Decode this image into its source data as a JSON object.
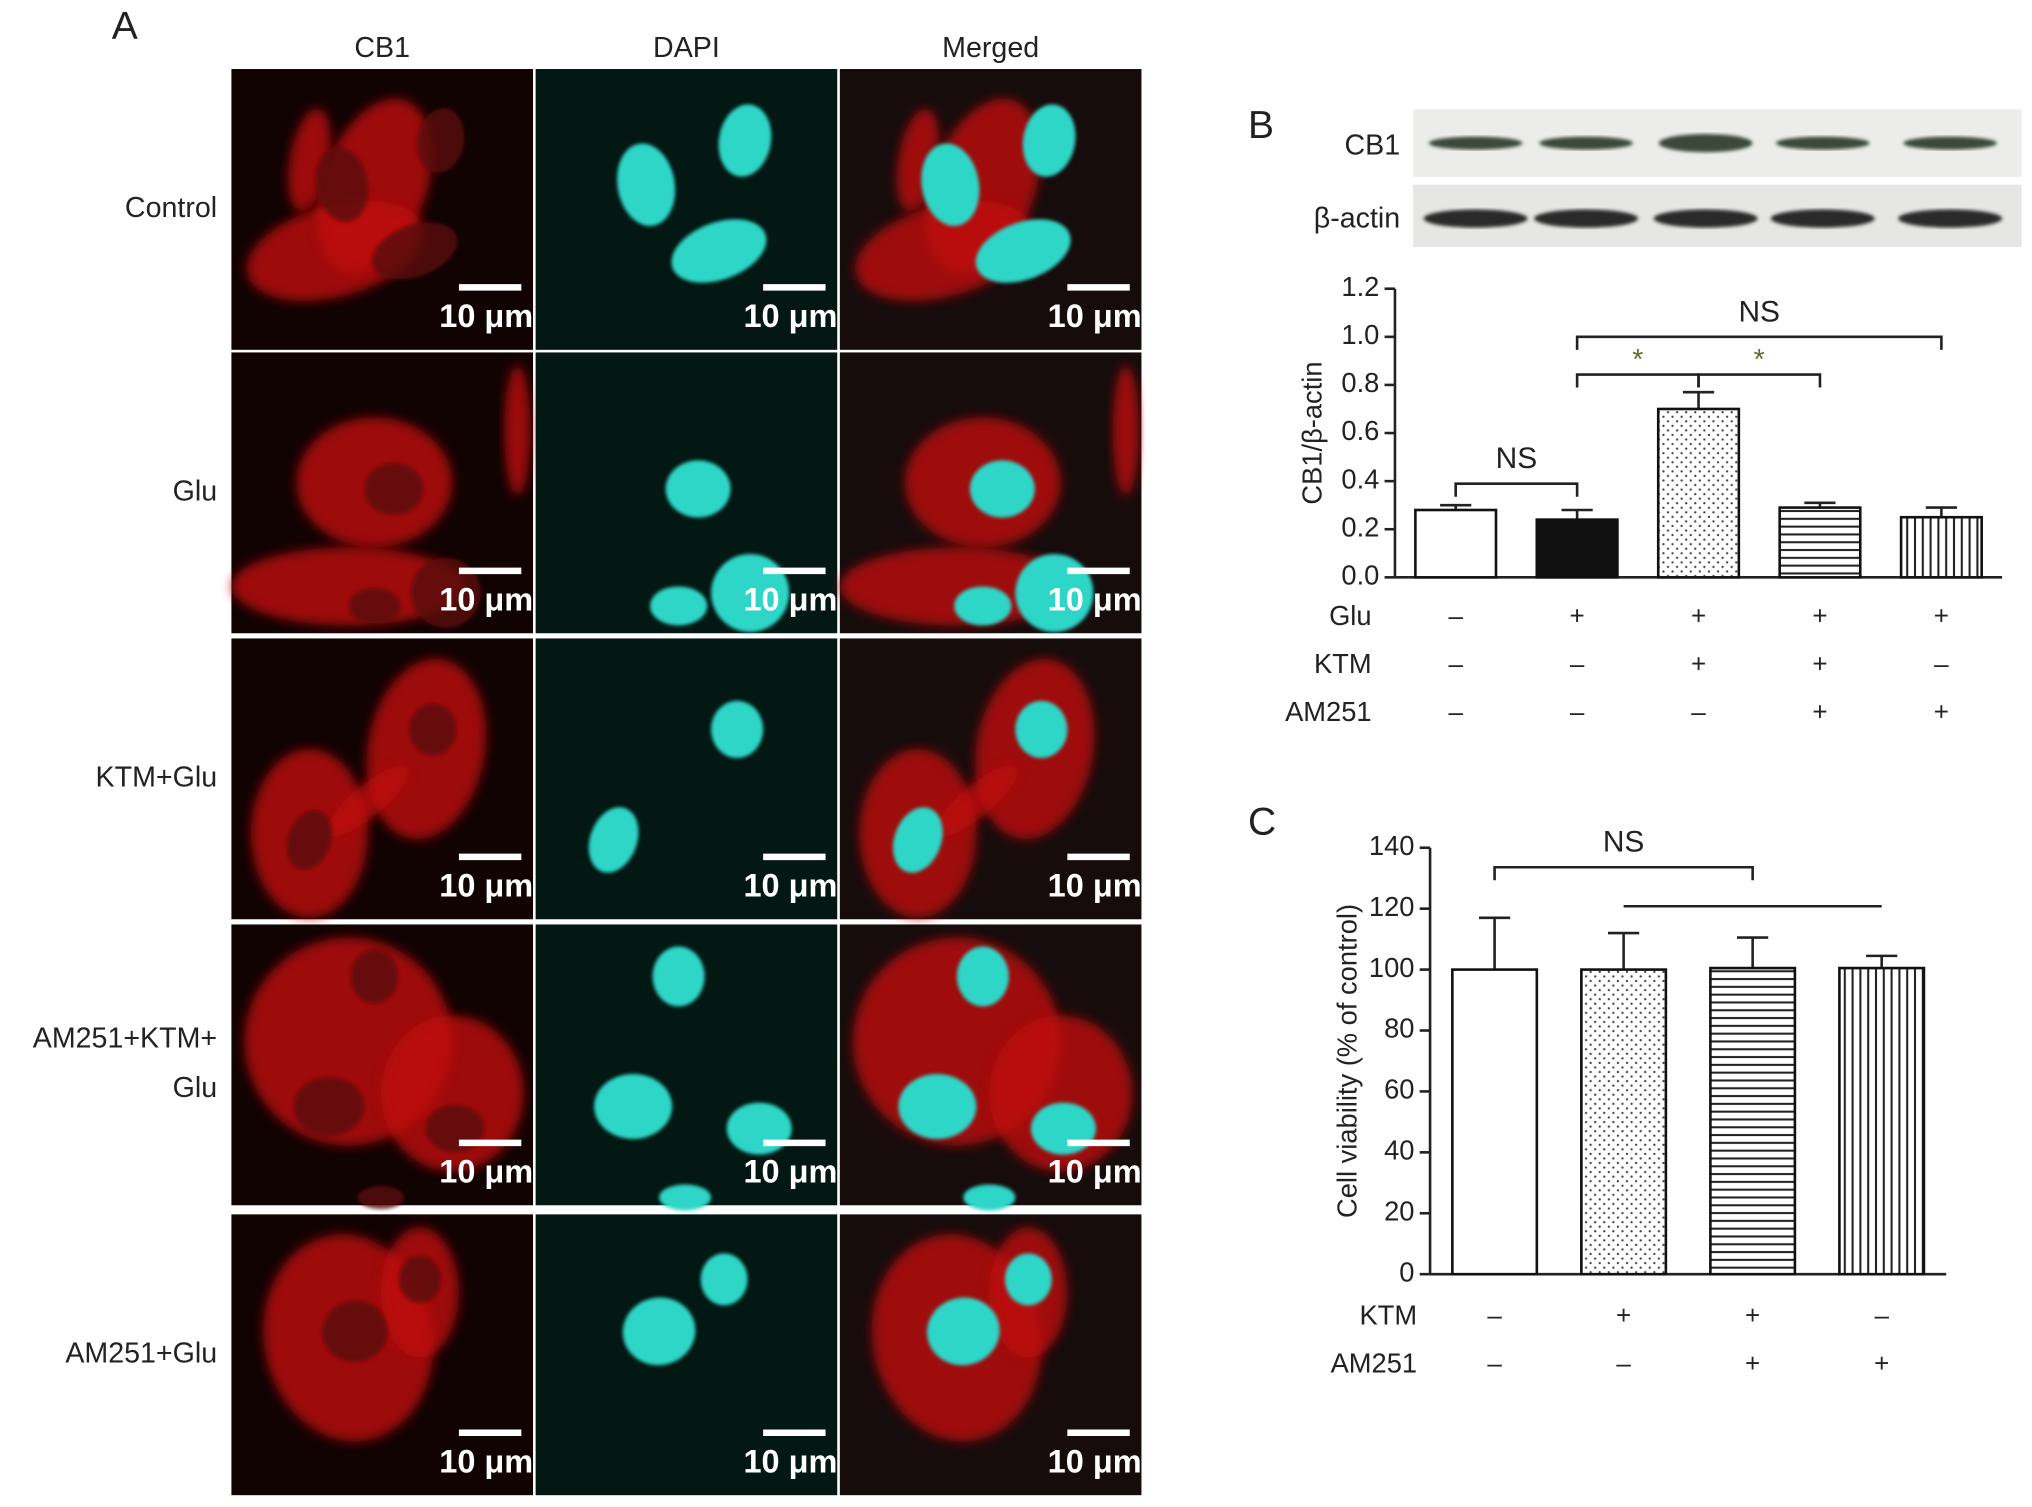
{
  "panel_a": {
    "letter": "A",
    "columns": [
      "CB1",
      "DAPI",
      "Merged"
    ],
    "rows": [
      [
        "Control"
      ],
      [
        "Glu"
      ],
      [
        "KTM+Glu"
      ],
      [
        "AM251+KTM+",
        "Glu"
      ],
      [
        "AM251+Glu"
      ]
    ],
    "scale_bar": "10 μm"
  },
  "panel_b_blot": {
    "letter": "B",
    "bands": [
      "CB1",
      "β-actin"
    ]
  },
  "chart_data": [
    {
      "type": "bar",
      "ylabel": "CB1/β-actin",
      "values": [
        0.28,
        0.24,
        0.7,
        0.29,
        0.25
      ],
      "errors": [
        0.02,
        0.04,
        0.07,
        0.02,
        0.04
      ],
      "bar_styles": [
        "open",
        "solid",
        "dotted",
        "horizontal",
        "vertical"
      ],
      "ylim": [
        0,
        1.2
      ],
      "yticks": [
        {
          "value": 0,
          "label": "0.0"
        },
        0.2,
        0.4,
        0.6,
        0.8,
        {
          "value": 1,
          "label": "1.0"
        },
        1.2
      ],
      "conditions": [
        {
          "label": "Glu",
          "signs": [
            "–",
            "+",
            "+",
            "+",
            "+"
          ]
        },
        {
          "label": "KTM",
          "signs": [
            "–",
            "–",
            "+",
            "+",
            "–"
          ]
        },
        {
          "label": "AM251",
          "signs": [
            "–",
            "–",
            "–",
            "+",
            "+"
          ]
        }
      ],
      "annotations": [
        "NS",
        "*",
        "*",
        "NS"
      ]
    },
    {
      "type": "bar",
      "letter": "C",
      "ylabel": "Cell viability (% of control)",
      "values": [
        100,
        100,
        100.5,
        100.5
      ],
      "errors": [
        17,
        12,
        10,
        4
      ],
      "bar_styles": [
        "open",
        "dotted",
        "horizontal",
        "vertical"
      ],
      "ylim": [
        0,
        140
      ],
      "yticks": [
        0,
        20,
        40,
        60,
        80,
        100,
        120,
        140
      ],
      "conditions": [
        {
          "label": "KTM",
          "signs": [
            "–",
            "+",
            "+",
            "–"
          ]
        },
        {
          "label": "AM251",
          "signs": [
            "–",
            "–",
            "+",
            "+"
          ]
        }
      ],
      "annotations": [
        "NS"
      ]
    }
  ]
}
